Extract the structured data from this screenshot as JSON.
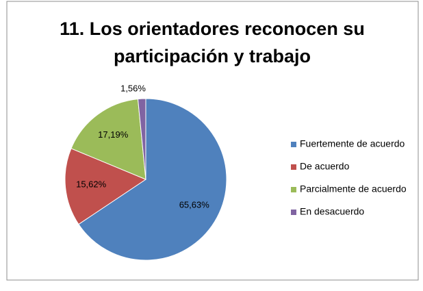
{
  "chart_data": {
    "type": "pie",
    "title": "11. Los orientadores reconocen su participación y trabajo",
    "categories": [
      "Fuertemente de acuerdo",
      "De acuerdo",
      "Parcialmente de acuerdo",
      "En desacuerdo"
    ],
    "values": [
      65.63,
      15.62,
      17.19,
      1.56
    ],
    "value_labels": [
      "65,63%",
      "15,62%",
      "17,19%",
      "1,56%"
    ],
    "colors": [
      "#4f81bd",
      "#c0504d",
      "#9bbb59",
      "#8064a2"
    ],
    "legend": "right"
  }
}
